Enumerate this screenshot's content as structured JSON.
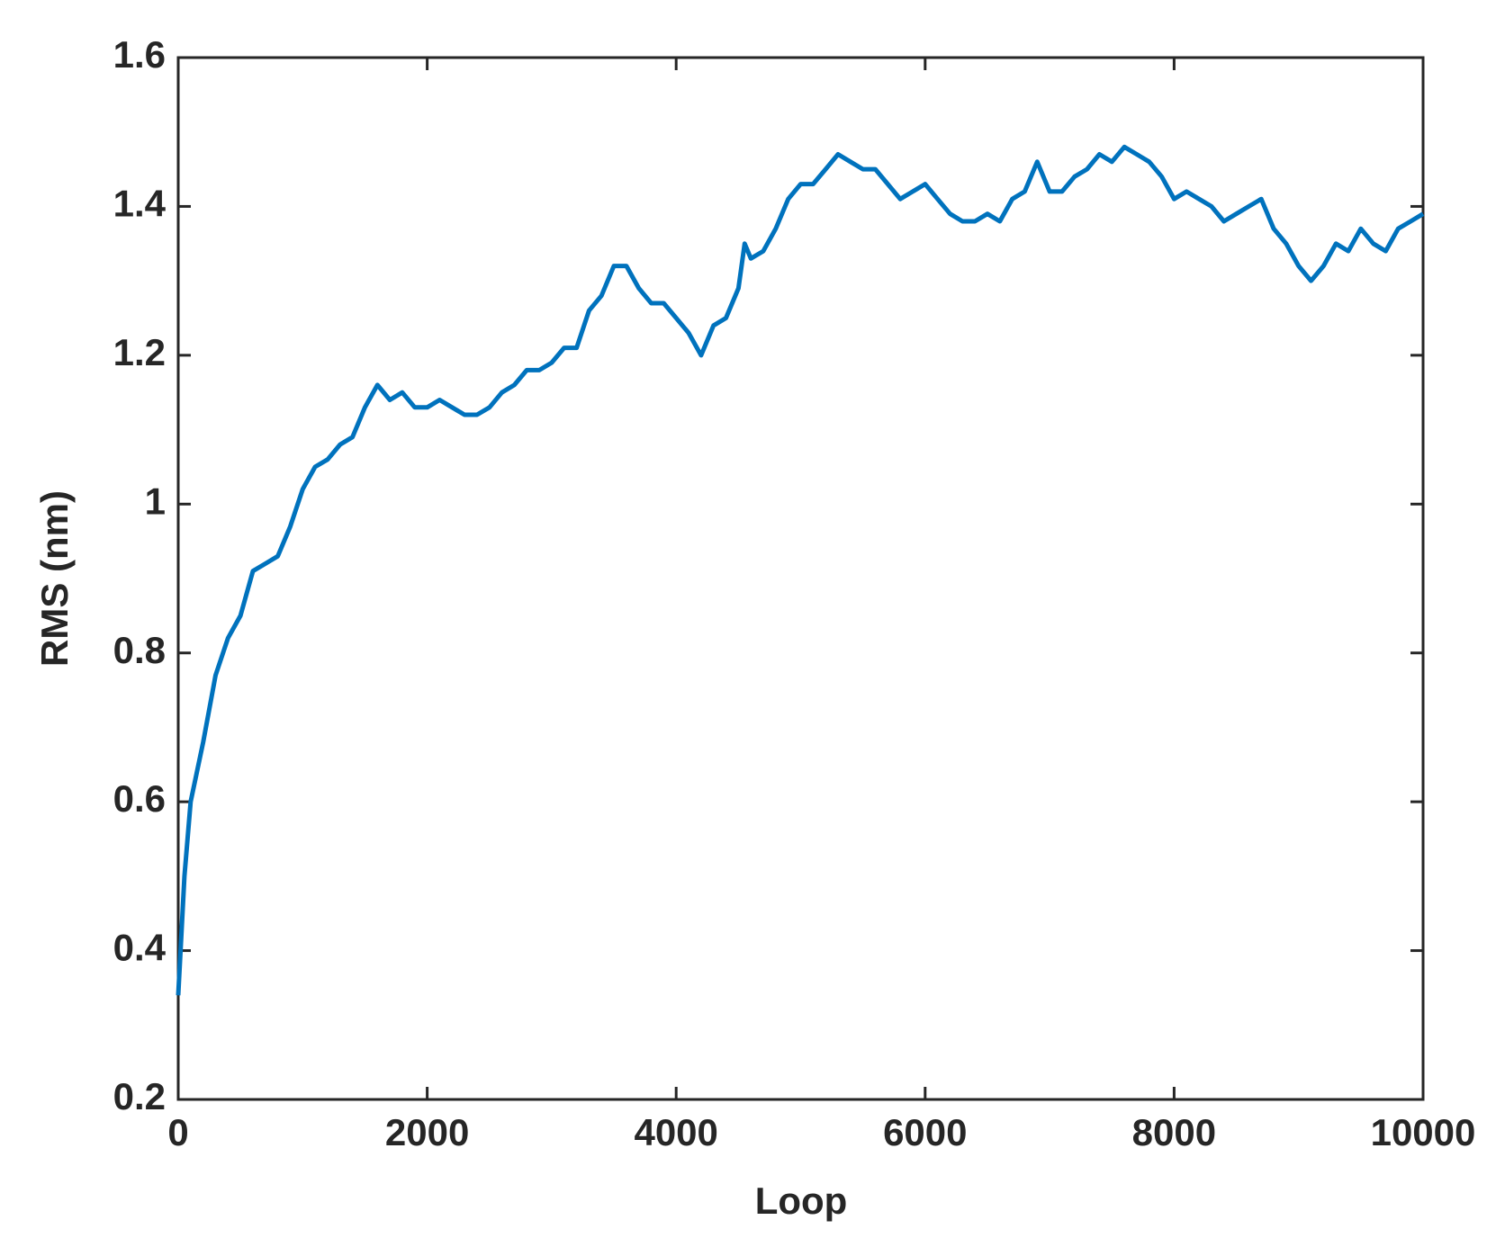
{
  "chart_data": {
    "type": "line",
    "x_label": "Loop",
    "y_label": "RMS (nm)",
    "x": [
      0,
      50,
      100,
      200,
      300,
      400,
      500,
      600,
      700,
      800,
      900,
      1000,
      1100,
      1200,
      1300,
      1400,
      1500,
      1600,
      1700,
      1800,
      1900,
      2000,
      2100,
      2200,
      2300,
      2400,
      2500,
      2600,
      2700,
      2800,
      2900,
      3000,
      3100,
      3200,
      3300,
      3400,
      3500,
      3600,
      3700,
      3800,
      3900,
      4000,
      4100,
      4200,
      4300,
      4400,
      4500,
      4550,
      4600,
      4700,
      4800,
      4900,
      5000,
      5100,
      5200,
      5300,
      5400,
      5500,
      5600,
      5700,
      5800,
      5900,
      6000,
      6100,
      6200,
      6300,
      6400,
      6500,
      6600,
      6700,
      6800,
      6900,
      7000,
      7100,
      7200,
      7300,
      7400,
      7500,
      7600,
      7700,
      7800,
      7900,
      8000,
      8100,
      8200,
      8300,
      8400,
      8500,
      8600,
      8700,
      8800,
      8900,
      9000,
      9100,
      9200,
      9300,
      9400,
      9500,
      9600,
      9700,
      9800,
      9900,
      10000
    ],
    "series": [
      {
        "color": "#0072bd",
        "values": [
          0.34,
          0.5,
          0.6,
          0.68,
          0.77,
          0.82,
          0.85,
          0.91,
          0.92,
          0.93,
          0.97,
          1.02,
          1.05,
          1.06,
          1.08,
          1.09,
          1.13,
          1.16,
          1.14,
          1.15,
          1.13,
          1.13,
          1.14,
          1.13,
          1.12,
          1.12,
          1.13,
          1.15,
          1.16,
          1.18,
          1.18,
          1.19,
          1.21,
          1.21,
          1.26,
          1.28,
          1.32,
          1.32,
          1.29,
          1.27,
          1.27,
          1.25,
          1.23,
          1.2,
          1.24,
          1.25,
          1.29,
          1.35,
          1.33,
          1.34,
          1.37,
          1.41,
          1.43,
          1.43,
          1.45,
          1.47,
          1.46,
          1.45,
          1.45,
          1.43,
          1.41,
          1.42,
          1.43,
          1.41,
          1.39,
          1.38,
          1.38,
          1.39,
          1.38,
          1.41,
          1.42,
          1.46,
          1.42,
          1.42,
          1.44,
          1.45,
          1.47,
          1.46,
          1.48,
          1.47,
          1.46,
          1.44,
          1.41,
          1.42,
          1.41,
          1.4,
          1.38,
          1.39,
          1.4,
          1.41,
          1.37,
          1.35,
          1.32,
          1.3,
          1.32,
          1.35,
          1.34,
          1.37,
          1.35,
          1.34,
          1.37,
          1.38,
          1.39
        ]
      }
    ],
    "xlim": [
      0,
      10000
    ],
    "xticks": [
      0,
      2000,
      4000,
      6000,
      8000,
      10000
    ],
    "ylim": [
      0.2,
      1.6
    ],
    "yticks": [
      0.2,
      0.4,
      0.6,
      0.8,
      1,
      1.2,
      1.4,
      1.6
    ]
  }
}
